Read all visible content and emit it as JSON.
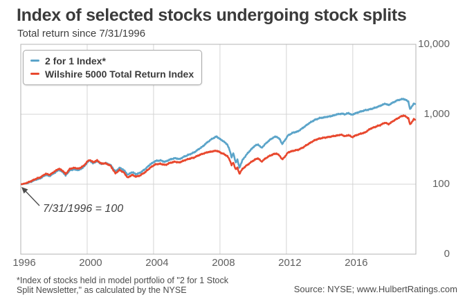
{
  "chart_data": {
    "type": "line",
    "title": "Index of selected stocks undergoing stock splits",
    "subtitle": "Total return since 7/31/1996",
    "y_scale": "log",
    "x_range": [
      1996.0,
      2019.8
    ],
    "x_ticks": [
      1996,
      2000,
      2004,
      2008,
      2012,
      2016
    ],
    "y_ticks": [
      {
        "label": "10,000",
        "value": 10000
      },
      {
        "label": "1,000",
        "value": 1000
      },
      {
        "label": "100",
        "value": 100
      },
      {
        "label": "0",
        "value": 0
      }
    ],
    "grid": true,
    "legend_position": "top-left",
    "annotation": {
      "text": "7/31/1996 = 100"
    },
    "series": [
      {
        "name": "2 for 1 Index*",
        "color": "#5ba4c9",
        "points": [
          [
            1996.05,
            100
          ],
          [
            1996.3,
            102
          ],
          [
            1996.6,
            108
          ],
          [
            1996.9,
            116
          ],
          [
            1997.2,
            122
          ],
          [
            1997.5,
            136
          ],
          [
            1997.75,
            131
          ],
          [
            1998.0,
            144
          ],
          [
            1998.3,
            160
          ],
          [
            1998.55,
            148
          ],
          [
            1998.7,
            133
          ],
          [
            1998.95,
            158
          ],
          [
            1999.2,
            163
          ],
          [
            1999.5,
            159
          ],
          [
            1999.8,
            177
          ],
          [
            2000.0,
            204
          ],
          [
            2000.15,
            220
          ],
          [
            2000.35,
            199
          ],
          [
            2000.6,
            214
          ],
          [
            2000.85,
            194
          ],
          [
            2001.1,
            201
          ],
          [
            2001.4,
            189
          ],
          [
            2001.7,
            151
          ],
          [
            2001.95,
            172
          ],
          [
            2002.2,
            160
          ],
          [
            2002.45,
            136
          ],
          [
            2002.7,
            149
          ],
          [
            2002.95,
            139
          ],
          [
            2003.2,
            146
          ],
          [
            2003.5,
            165
          ],
          [
            2003.8,
            192
          ],
          [
            2004.1,
            214
          ],
          [
            2004.4,
            219
          ],
          [
            2004.7,
            209
          ],
          [
            2005.0,
            226
          ],
          [
            2005.3,
            236
          ],
          [
            2005.55,
            228
          ],
          [
            2005.85,
            248
          ],
          [
            2006.15,
            266
          ],
          [
            2006.45,
            285
          ],
          [
            2006.7,
            315
          ],
          [
            2006.95,
            345
          ],
          [
            2007.25,
            400
          ],
          [
            2007.55,
            450
          ],
          [
            2007.8,
            481
          ],
          [
            2008.0,
            442
          ],
          [
            2008.2,
            413
          ],
          [
            2008.45,
            368
          ],
          [
            2008.6,
            297
          ],
          [
            2008.7,
            243
          ],
          [
            2008.8,
            278
          ],
          [
            2008.95,
            204
          ],
          [
            2009.05,
            224
          ],
          [
            2009.17,
            172
          ],
          [
            2009.35,
            220
          ],
          [
            2009.6,
            265
          ],
          [
            2009.85,
            310
          ],
          [
            2010.1,
            355
          ],
          [
            2010.3,
            370
          ],
          [
            2010.5,
            330
          ],
          [
            2010.75,
            380
          ],
          [
            2011.0,
            430
          ],
          [
            2011.25,
            470
          ],
          [
            2011.4,
            480
          ],
          [
            2011.6,
            440
          ],
          [
            2011.75,
            375
          ],
          [
            2011.95,
            440
          ],
          [
            2012.1,
            500
          ],
          [
            2012.4,
            545
          ],
          [
            2012.7,
            570
          ],
          [
            2013.0,
            640
          ],
          [
            2013.35,
            740
          ],
          [
            2013.7,
            830
          ],
          [
            2014.0,
            880
          ],
          [
            2014.35,
            910
          ],
          [
            2014.7,
            940
          ],
          [
            2015.0,
            990
          ],
          [
            2015.3,
            1020
          ],
          [
            2015.55,
            1000
          ],
          [
            2015.75,
            1040
          ],
          [
            2015.95,
            980
          ],
          [
            2016.15,
            1030
          ],
          [
            2016.45,
            1090
          ],
          [
            2016.75,
            1140
          ],
          [
            2017.05,
            1180
          ],
          [
            2017.35,
            1240
          ],
          [
            2017.65,
            1320
          ],
          [
            2017.95,
            1420
          ],
          [
            2018.15,
            1350
          ],
          [
            2018.4,
            1460
          ],
          [
            2018.65,
            1570
          ],
          [
            2018.9,
            1630
          ],
          [
            2019.05,
            1660
          ],
          [
            2019.2,
            1600
          ],
          [
            2019.35,
            1520
          ],
          [
            2019.45,
            1170
          ],
          [
            2019.58,
            1320
          ],
          [
            2019.68,
            1430
          ],
          [
            2019.75,
            1400
          ]
        ]
      },
      {
        "name": "Wilshire 5000 Total Return Index",
        "color": "#e8482e",
        "points": [
          [
            1996.05,
            100
          ],
          [
            1996.3,
            103
          ],
          [
            1996.6,
            110
          ],
          [
            1996.9,
            119
          ],
          [
            1997.2,
            126
          ],
          [
            1997.5,
            141
          ],
          [
            1997.75,
            136
          ],
          [
            1998.0,
            150
          ],
          [
            1998.3,
            167
          ],
          [
            1998.55,
            154
          ],
          [
            1998.7,
            139
          ],
          [
            1998.95,
            165
          ],
          [
            1999.2,
            171
          ],
          [
            1999.5,
            167
          ],
          [
            1999.8,
            184
          ],
          [
            2000.0,
            210
          ],
          [
            2000.15,
            223
          ],
          [
            2000.35,
            206
          ],
          [
            2000.6,
            219
          ],
          [
            2000.85,
            197
          ],
          [
            2001.1,
            199
          ],
          [
            2001.4,
            184
          ],
          [
            2001.7,
            143
          ],
          [
            2001.95,
            160
          ],
          [
            2002.2,
            148
          ],
          [
            2002.45,
            124
          ],
          [
            2002.7,
            136
          ],
          [
            2002.95,
            128
          ],
          [
            2003.2,
            134
          ],
          [
            2003.5,
            149
          ],
          [
            2003.8,
            172
          ],
          [
            2004.1,
            192
          ],
          [
            2004.4,
            196
          ],
          [
            2004.7,
            188
          ],
          [
            2005.0,
            202
          ],
          [
            2005.3,
            210
          ],
          [
            2005.55,
            204
          ],
          [
            2005.85,
            219
          ],
          [
            2006.15,
            231
          ],
          [
            2006.45,
            241
          ],
          [
            2006.7,
            258
          ],
          [
            2006.95,
            272
          ],
          [
            2007.25,
            286
          ],
          [
            2007.55,
            295
          ],
          [
            2007.8,
            301
          ],
          [
            2008.0,
            286
          ],
          [
            2008.2,
            272
          ],
          [
            2008.45,
            252
          ],
          [
            2008.6,
            218
          ],
          [
            2008.7,
            188
          ],
          [
            2008.8,
            203
          ],
          [
            2008.95,
            163
          ],
          [
            2009.05,
            172
          ],
          [
            2009.17,
            141
          ],
          [
            2009.35,
            165
          ],
          [
            2009.6,
            185
          ],
          [
            2009.85,
            205
          ],
          [
            2010.1,
            225
          ],
          [
            2010.3,
            235
          ],
          [
            2010.5,
            210
          ],
          [
            2010.75,
            235
          ],
          [
            2011.0,
            255
          ],
          [
            2011.25,
            270
          ],
          [
            2011.4,
            275
          ],
          [
            2011.6,
            255
          ],
          [
            2011.75,
            225
          ],
          [
            2011.95,
            255
          ],
          [
            2012.1,
            285
          ],
          [
            2012.4,
            300
          ],
          [
            2012.7,
            310
          ],
          [
            2013.0,
            335
          ],
          [
            2013.35,
            380
          ],
          [
            2013.7,
            425
          ],
          [
            2014.0,
            450
          ],
          [
            2014.35,
            465
          ],
          [
            2014.7,
            480
          ],
          [
            2015.0,
            495
          ],
          [
            2015.3,
            510
          ],
          [
            2015.55,
            485
          ],
          [
            2015.75,
            505
          ],
          [
            2015.95,
            470
          ],
          [
            2016.15,
            495
          ],
          [
            2016.45,
            525
          ],
          [
            2016.75,
            550
          ],
          [
            2017.05,
            620
          ],
          [
            2017.35,
            660
          ],
          [
            2017.65,
            700
          ],
          [
            2017.95,
            760
          ],
          [
            2018.15,
            720
          ],
          [
            2018.4,
            790
          ],
          [
            2018.65,
            860
          ],
          [
            2018.9,
            930
          ],
          [
            2019.05,
            960
          ],
          [
            2019.2,
            925
          ],
          [
            2019.35,
            880
          ],
          [
            2019.45,
            710
          ],
          [
            2019.58,
            790
          ],
          [
            2019.68,
            850
          ],
          [
            2019.75,
            835
          ]
        ]
      }
    ]
  },
  "footer": {
    "footnote_line1": "*Index of stocks held in model portfolio of \"2 for 1 Stock",
    "footnote_line2": "Split Newsletter,\" as calculated by the NYSE",
    "source": "Source: NYSE; www.HulbertRatings.com"
  }
}
